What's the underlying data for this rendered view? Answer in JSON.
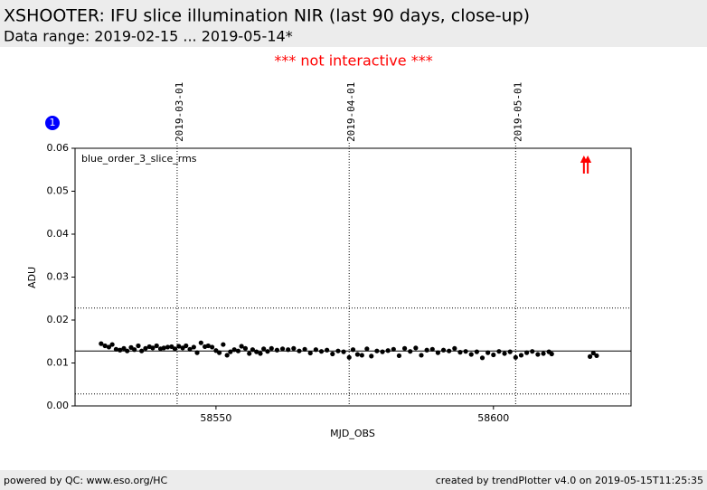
{
  "header": {
    "title": "XSHOOTER: IFU slice illumination NIR (last 90 days, close-up)",
    "subtitle": "Data range: 2019-02-15 ... 2019-05-14*"
  },
  "notice": "*** not interactive ***",
  "badge": "1",
  "footer": {
    "left": "powered by QC: www.eso.org/HC",
    "right": "created by trendPlotter v4.0 on 2019-05-15T11:25:35"
  },
  "chart_data": {
    "type": "scatter",
    "annotation": "blue_order_3_slice_rms",
    "xlabel": "MJD_OBS",
    "ylabel": "ADU",
    "xlim": [
      58524.6,
      58624.8
    ],
    "ylim": [
      0,
      0.06
    ],
    "xticks": [
      58550,
      58600
    ],
    "yticks": [
      {
        "value": 0,
        "label": "0.00"
      },
      0.01,
      0.02,
      0.03,
      0.04,
      0.05,
      0.06
    ],
    "date_ticks": [
      {
        "value": 58543,
        "label": "2019-03-01"
      },
      {
        "value": 58574,
        "label": "2019-04-01"
      },
      {
        "value": 58604,
        "label": "2019-05-01"
      }
    ],
    "median": 0.0128,
    "limits": [
      0.0228,
      0.0028
    ],
    "outliers_x": [
      58616.3,
      58617.0
    ],
    "color": "#000000",
    "outlier_color": "#ff0000",
    "x": [
      58529.3,
      58530,
      58530.7,
      58531.3,
      58532,
      58532.7,
      58533.4,
      58534,
      58534.7,
      58535.3,
      58536,
      58536.6,
      58537.3,
      58538,
      58538.6,
      58539.3,
      58540,
      58540.6,
      58541.3,
      58542,
      58542.6,
      58543.3,
      58544,
      58544.6,
      58545.3,
      58546,
      58546.6,
      58547.3,
      58548,
      58548.6,
      58549.3,
      58550,
      58550.6,
      58551.3,
      58552,
      58552.6,
      58553.3,
      58554,
      58554.6,
      58555.3,
      58556,
      58556.6,
      58557.3,
      58558,
      58558.6,
      58559.3,
      58560,
      58561,
      58562,
      58563,
      58564,
      58565,
      58566,
      58567,
      58568,
      58569,
      58570,
      58571,
      58572,
      58573,
      58574,
      58574.7,
      58575.5,
      58576.3,
      58577.2,
      58578,
      58579,
      58580,
      58581,
      58582,
      58583,
      58584,
      58585,
      58586,
      58587,
      58588,
      58589,
      58590,
      58591,
      58592,
      58593,
      58594,
      58595,
      58596,
      58597,
      58598,
      58599,
      58600,
      58601,
      58602,
      58603,
      58604,
      58605,
      58606,
      58607,
      58608,
      58609,
      58610,
      58610.5,
      58617.4,
      58618,
      58618.6
    ],
    "values": [
      0.0145,
      0.014,
      0.0137,
      0.0143,
      0.0132,
      0.013,
      0.0134,
      0.0128,
      0.0136,
      0.0131,
      0.014,
      0.0128,
      0.0134,
      0.0138,
      0.0135,
      0.014,
      0.0133,
      0.0135,
      0.0137,
      0.0138,
      0.0133,
      0.0139,
      0.0135,
      0.014,
      0.0132,
      0.0137,
      0.0124,
      0.0147,
      0.0138,
      0.014,
      0.0137,
      0.0129,
      0.0124,
      0.0143,
      0.0118,
      0.0126,
      0.0131,
      0.0128,
      0.0139,
      0.0134,
      0.0122,
      0.0131,
      0.0126,
      0.0122,
      0.0133,
      0.0127,
      0.0134,
      0.013,
      0.0133,
      0.0131,
      0.0134,
      0.0128,
      0.0132,
      0.0123,
      0.0131,
      0.0127,
      0.013,
      0.0121,
      0.0128,
      0.0126,
      0.0113,
      0.0131,
      0.012,
      0.0118,
      0.0133,
      0.0116,
      0.0128,
      0.0126,
      0.0129,
      0.0132,
      0.0117,
      0.0134,
      0.0127,
      0.0135,
      0.0118,
      0.013,
      0.0132,
      0.0124,
      0.013,
      0.0128,
      0.0134,
      0.0125,
      0.0127,
      0.012,
      0.0126,
      0.0112,
      0.0124,
      0.0119,
      0.0127,
      0.0122,
      0.0126,
      0.0113,
      0.0118,
      0.0124,
      0.0127,
      0.012,
      0.0122,
      0.0126,
      0.0121,
      0.0115,
      0.0123,
      0.0117
    ]
  }
}
